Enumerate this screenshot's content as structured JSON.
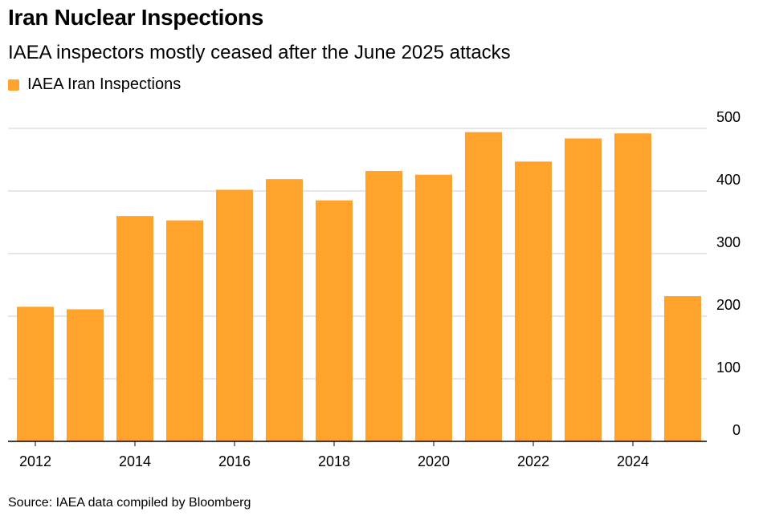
{
  "chart_data": {
    "type": "bar",
    "title": "Iran Nuclear Inspections",
    "subtitle": "IAEA inspectors mostly ceased after the June 2025 attacks",
    "legend": {
      "label": "IAEA Iran Inspections",
      "color": "#FFA32D",
      "placement": "top-left"
    },
    "categories": [
      "2012",
      "2013",
      "2014",
      "2015",
      "2016",
      "2017",
      "2018",
      "2019",
      "2020",
      "2021",
      "2022",
      "2023",
      "2024",
      "2025"
    ],
    "values": [
      215,
      211,
      360,
      353,
      402,
      419,
      385,
      432,
      426,
      494,
      447,
      484,
      492,
      232
    ],
    "x_tick_labels": [
      "2012",
      "2014",
      "2016",
      "2018",
      "2020",
      "2022",
      "2024"
    ],
    "y_ticks": [
      0,
      100,
      200,
      300,
      400,
      500
    ],
    "ylim": [
      0,
      500
    ],
    "y_axis_side": "right",
    "grid": true,
    "bar_color": "#FFA32D",
    "source": "Source: IAEA data compiled by Bloomberg"
  }
}
